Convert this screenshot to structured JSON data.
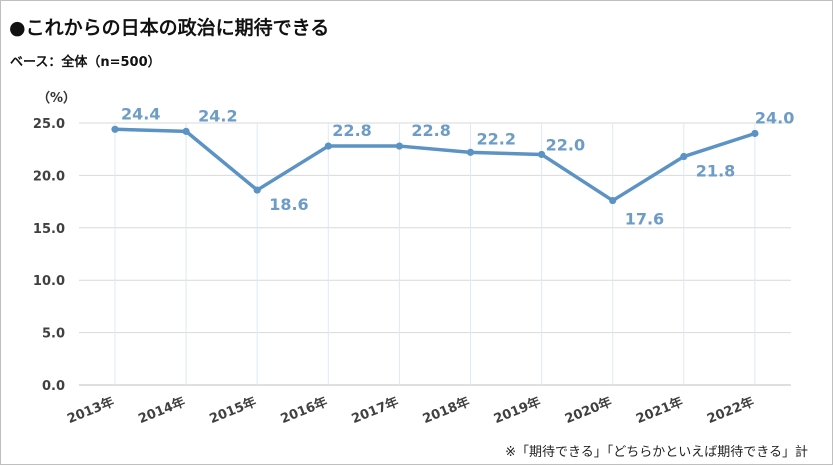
{
  "title": "●これからの日本の政治に期待できる",
  "base_label": "ベース：全体（n=500）",
  "unit_label": "（%）",
  "footnote": "※「期待できる」「どちらかといえば期待できる」計",
  "chart_data": {
    "type": "line",
    "title": "●これからの日本の政治に期待できる",
    "xlabel": "",
    "ylabel": "（%）",
    "categories": [
      "2013年",
      "2014年",
      "2015年",
      "2016年",
      "2017年",
      "2018年",
      "2019年",
      "2020年",
      "2021年",
      "2022年"
    ],
    "series": [
      {
        "values": [
          24.4,
          24.2,
          18.6,
          22.8,
          22.8,
          22.2,
          22.0,
          17.6,
          21.8,
          24.0
        ],
        "color": "#5b93c4"
      }
    ],
    "data_labels": [
      "24.4",
      "24.2",
      "18.6",
      "22.8",
      "22.8",
      "22.2",
      "22.0",
      "17.6",
      "21.8",
      "24.0"
    ],
    "yticks": [
      "0.0",
      "5.0",
      "10.0",
      "15.0",
      "20.0",
      "25.0"
    ],
    "ylim": [
      0,
      25
    ],
    "grid": "horizontal and vertical",
    "legend": "none"
  }
}
